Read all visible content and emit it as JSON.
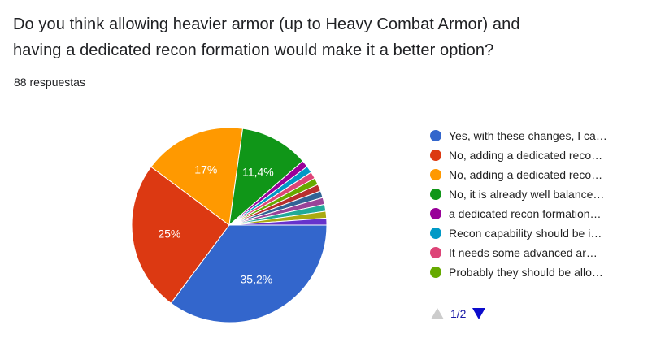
{
  "question": {
    "title_line1": "Do you think allowing heavier armor (up to Heavy Combat Armor) and",
    "title_line2": "having a dedicated recon formation would make it a better option?",
    "response_count": "88 respuestas"
  },
  "chart_data": {
    "type": "pie",
    "start_angle_deg": 90,
    "direction": "clockwise",
    "slices": [
      {
        "label": "Yes, with these changes, I ca…",
        "value": 35.2,
        "data_label": "35,2%",
        "color": "#3366cc"
      },
      {
        "label": "No, adding a dedicated reco…",
        "value": 25.0,
        "data_label": "25%",
        "color": "#dc3912"
      },
      {
        "label": "No, adding a dedicated reco…",
        "value": 17.0,
        "data_label": "17%",
        "color": "#ff9900"
      },
      {
        "label": "No, it is already well balance…",
        "value": 11.4,
        "data_label": "11,4%",
        "color": "#109618"
      },
      {
        "label": "a dedicated recon formation…",
        "value": 1.14,
        "data_label": "",
        "color": "#990099"
      },
      {
        "label": "Recon capability should be i…",
        "value": 1.14,
        "data_label": "",
        "color": "#0099c6"
      },
      {
        "label": "It needs some advanced ar…",
        "value": 1.14,
        "data_label": "",
        "color": "#dd4477"
      },
      {
        "label": "Probably they should be allo…",
        "value": 1.14,
        "data_label": "",
        "color": "#66aa00"
      },
      {
        "label": "",
        "value": 1.14,
        "data_label": "",
        "color": "#b82e2e"
      },
      {
        "label": "",
        "value": 1.14,
        "data_label": "",
        "color": "#316395"
      },
      {
        "label": "",
        "value": 1.14,
        "data_label": "",
        "color": "#994499"
      },
      {
        "label": "",
        "value": 1.14,
        "data_label": "",
        "color": "#22aa99"
      },
      {
        "label": "",
        "value": 1.14,
        "data_label": "",
        "color": "#aaaa11"
      },
      {
        "label": "",
        "value": 1.14,
        "data_label": "",
        "color": "#6633cc"
      }
    ]
  },
  "legend": {
    "items": [
      {
        "label": "Yes, with these changes, I ca…",
        "color": "#3366cc"
      },
      {
        "label": "No, adding a dedicated reco…",
        "color": "#dc3912"
      },
      {
        "label": "No, adding a dedicated reco…",
        "color": "#ff9900"
      },
      {
        "label": "No, it is already well balance…",
        "color": "#109618"
      },
      {
        "label": "a dedicated recon formation…",
        "color": "#990099"
      },
      {
        "label": "Recon capability should be i…",
        "color": "#0099c6"
      },
      {
        "label": "It needs some advanced ar…",
        "color": "#dd4477"
      },
      {
        "label": "Probably they should be allo…",
        "color": "#66aa00"
      }
    ],
    "pager": "1/2",
    "prev_icon": "triangle-up-icon",
    "next_icon": "triangle-down-icon"
  }
}
